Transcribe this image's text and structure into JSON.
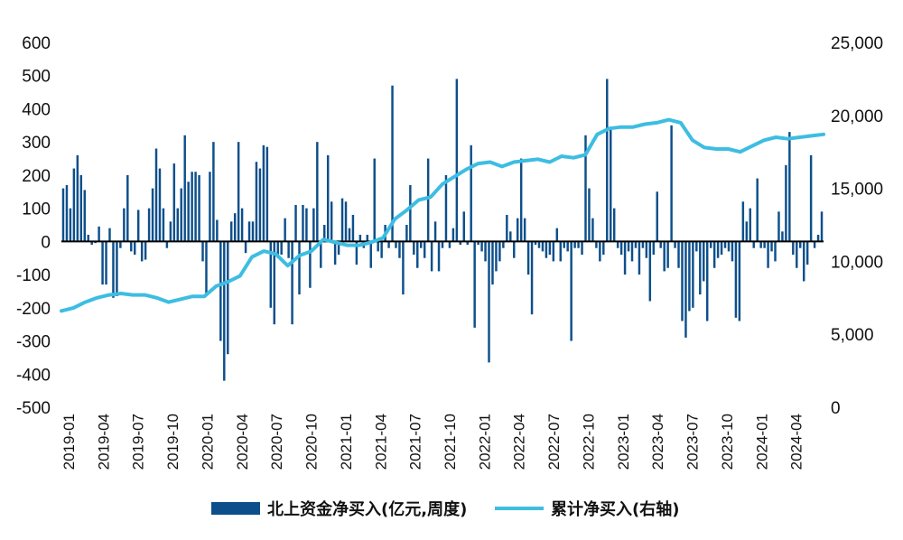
{
  "chart_data": {
    "type": "bar+line",
    "legend": {
      "bars_label": "北上资金净买入(亿元,周度)",
      "line_label": "累计净买入(右轴)",
      "position": "bottom"
    },
    "colors": {
      "bars": "#0d4f8b",
      "line": "#3dbde2",
      "axis": "#000000"
    },
    "y_left": {
      "min": -500,
      "max": 600,
      "ticks": [
        "600",
        "500",
        "400",
        "300",
        "200",
        "100",
        "0",
        "-100",
        "-200",
        "-300",
        "-400",
        "-500"
      ]
    },
    "y_right": {
      "min": 0,
      "max": 25000,
      "ticks": [
        "25,000",
        "20,000",
        "15,000",
        "10,000",
        "5,000",
        "0"
      ]
    },
    "x_ticks": [
      "2019-01",
      "2019-04",
      "2019-07",
      "2019-10",
      "2020-01",
      "2020-04",
      "2020-07",
      "2020-10",
      "2021-01",
      "2021-04",
      "2021-07",
      "2021-10",
      "2022-01",
      "2022-04",
      "2022-07",
      "2022-10",
      "2023-01",
      "2023-04",
      "2023-07",
      "2023-10",
      "2024-01",
      "2024-04"
    ],
    "weekly_net_buy": [
      160,
      170,
      100,
      220,
      260,
      200,
      155,
      20,
      -10,
      -5,
      45,
      -130,
      -130,
      40,
      -170,
      -165,
      -20,
      100,
      200,
      -30,
      -40,
      95,
      -60,
      -55,
      100,
      160,
      280,
      220,
      100,
      -20,
      60,
      235,
      100,
      160,
      320,
      180,
      210,
      210,
      200,
      -60,
      -160,
      210,
      300,
      65,
      -300,
      -420,
      -340,
      60,
      85,
      300,
      100,
      -35,
      60,
      60,
      240,
      220,
      290,
      285,
      -200,
      -250,
      -50,
      -40,
      70,
      -50,
      -250,
      110,
      -160,
      110,
      100,
      -140,
      100,
      300,
      -80,
      50,
      260,
      120,
      -70,
      -40,
      130,
      120,
      40,
      80,
      -70,
      20,
      -20,
      20,
      -80,
      250,
      -30,
      -50,
      50,
      -20,
      470,
      -20,
      -50,
      -160,
      50,
      170,
      -40,
      -80,
      -20,
      -50,
      250,
      -90,
      60,
      -90,
      -20,
      200,
      -20,
      40,
      490,
      -10,
      90,
      -10,
      290,
      -260,
      -10,
      -30,
      -60,
      -365,
      -130,
      -90,
      -60,
      -20,
      80,
      30,
      -50,
      70,
      250,
      70,
      -100,
      -220,
      -10,
      -20,
      -30,
      -50,
      -40,
      -60,
      40,
      -60,
      -20,
      -30,
      -300,
      -20,
      -20,
      -40,
      320,
      160,
      70,
      -20,
      -60,
      -40,
      490,
      340,
      100,
      -20,
      -40,
      -100,
      -30,
      -60,
      -20,
      -100,
      -20,
      -50,
      -180,
      -40,
      150,
      -20,
      -90,
      -80,
      350,
      -20,
      -80,
      -240,
      -290,
      -210,
      -200,
      -30,
      -160,
      -120,
      -240,
      -20,
      -80,
      -50,
      -40,
      -20,
      -30,
      -60,
      -230,
      -240,
      120,
      60,
      100,
      -20,
      190,
      -20,
      -20,
      -80,
      -30,
      -60,
      90,
      30,
      230,
      330,
      -40,
      -80,
      -20,
      -120,
      -70,
      260,
      -20,
      20,
      90
    ],
    "cumulative_net_buy": [
      6600,
      6800,
      7200,
      7500,
      7700,
      7800,
      7700,
      7700,
      7500,
      7200,
      7400,
      7600,
      7600,
      8300,
      8600,
      9000,
      10300,
      10700,
      10500,
      9700,
      10400,
      10700,
      11500,
      11300,
      11100,
      11100,
      11300,
      11600,
      12900,
      13500,
      14200,
      14400,
      15300,
      15800,
      16300,
      16700,
      16800,
      16500,
      16800,
      16900,
      17000,
      16800,
      17200,
      17100,
      17300,
      18700,
      19100,
      19200,
      19200,
      19400,
      19500,
      19700,
      19500,
      18300,
      17800,
      17700,
      17700,
      17500,
      17900,
      18300,
      18500,
      18400,
      18500,
      18600,
      18700
    ]
  }
}
